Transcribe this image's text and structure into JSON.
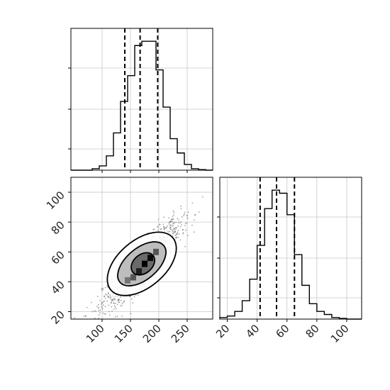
{
  "chart_data": [
    {
      "type": "histogram",
      "panel": "x-marginal",
      "x_range": [
        45,
        295
      ],
      "bin_edges": [
        45,
        57.5,
        70,
        82.5,
        95,
        107.5,
        120,
        132.5,
        145,
        157.5,
        170,
        182.5,
        195,
        207.5,
        220,
        232.5,
        245,
        257.5,
        270,
        282.5,
        295
      ],
      "counts": [
        0,
        0,
        0,
        0.5,
        1.5,
        5,
        13,
        24,
        33,
        43.5,
        45,
        45,
        35,
        22,
        11,
        6,
        2,
        0.5,
        0.2,
        0
      ],
      "quantiles": [
        140,
        167,
        198
      ],
      "x_ticks": [
        100,
        150,
        200,
        250
      ],
      "grid": true
    },
    {
      "type": "heatmap",
      "panel": "joint",
      "x_range": [
        45,
        295
      ],
      "y_range": [
        15,
        110
      ],
      "x_ticks": [
        100,
        150,
        200,
        250
      ],
      "x_tick_labels": [
        "100",
        "150",
        "200",
        "250"
      ],
      "y_ticks": [
        20,
        40,
        60,
        80,
        100
      ],
      "y_tick_labels": [
        "20",
        "40",
        "60",
        "80",
        "100"
      ],
      "cells": [
        {
          "x": 165,
          "y": 47,
          "level": 0.85
        },
        {
          "x": 175,
          "y": 52,
          "level": 1.0
        },
        {
          "x": 185,
          "y": 56,
          "level": 0.95
        },
        {
          "x": 155,
          "y": 43,
          "level": 0.55
        },
        {
          "x": 195,
          "y": 60,
          "level": 0.55
        },
        {
          "x": 145,
          "y": 41,
          "level": 0.4
        }
      ],
      "contours": [
        {
          "cx": 172,
          "cy": 52,
          "rx": 22,
          "ry": 6,
          "angle": 0.32
        },
        {
          "cx": 170,
          "cy": 52,
          "rx": 48,
          "ry": 10,
          "angle": 0.32
        },
        {
          "cx": 170,
          "cy": 52,
          "rx": 68,
          "ry": 15,
          "angle": 0.32
        }
      ],
      "scatter_center": [
        170,
        52
      ],
      "grid": true
    },
    {
      "type": "histogram",
      "panel": "y-marginal",
      "x_range": [
        15,
        110
      ],
      "bin_edges": [
        15,
        20,
        25,
        30,
        35,
        40,
        45,
        50,
        55,
        60,
        65,
        70,
        75,
        80,
        85,
        90,
        95,
        100,
        105,
        110
      ],
      "counts": [
        0.5,
        1,
        2.5,
        6,
        13,
        24,
        36,
        42,
        41,
        34,
        21,
        11,
        5,
        2.5,
        1.5,
        0.5,
        0.2,
        0,
        0
      ],
      "quantiles": [
        42,
        53,
        65
      ],
      "x_ticks": [
        20,
        40,
        60,
        80,
        100
      ],
      "x_tick_labels": [
        "20",
        "40",
        "60",
        "80",
        "100"
      ],
      "grid": true
    }
  ]
}
